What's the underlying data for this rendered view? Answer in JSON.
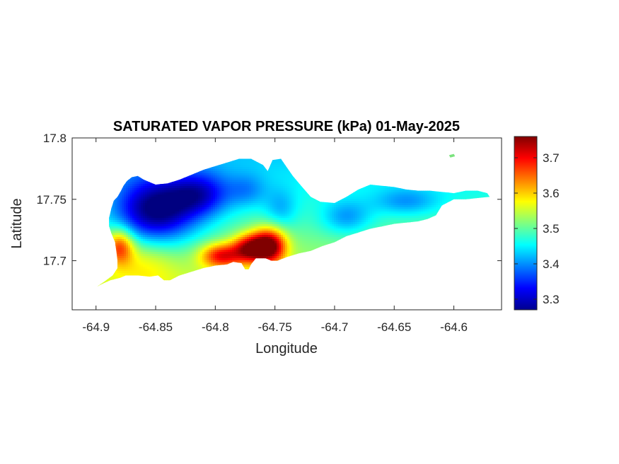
{
  "chart_data": {
    "type": "heatmap",
    "title": "SATURATED VAPOR PRESSURE (kPa) 01-May-2025",
    "xlabel": "Longitude",
    "ylabel": "Latitude",
    "xlim": [
      -64.92,
      -64.56
    ],
    "ylim": [
      17.66,
      17.8
    ],
    "xticks": [
      -64.9,
      -64.85,
      -64.8,
      -64.75,
      -64.7,
      -64.65,
      -64.6
    ],
    "xtick_labels": [
      "-64.9",
      "-64.85",
      "-64.8",
      "-64.75",
      "-64.7",
      "-64.65",
      "-64.6"
    ],
    "yticks": [
      17.7,
      17.75,
      17.8
    ],
    "ytick_labels": [
      "17.7",
      "17.75",
      "17.8"
    ],
    "colormap": "jet",
    "colorbar": {
      "range": [
        3.27,
        3.76
      ],
      "ticks": [
        3.3,
        3.4,
        3.5,
        3.6,
        3.7
      ],
      "tick_labels": [
        "3.3",
        "3.4",
        "3.5",
        "3.6",
        "3.7"
      ],
      "placement": "right"
    },
    "region_outline": [
      [
        -64.899,
        17.679
      ],
      [
        -64.893,
        17.683
      ],
      [
        -64.886,
        17.688
      ],
      [
        -64.882,
        17.694
      ],
      [
        -64.882,
        17.7
      ],
      [
        -64.883,
        17.708
      ],
      [
        -64.884,
        17.715
      ],
      [
        -64.887,
        17.722
      ],
      [
        -64.889,
        17.728
      ],
      [
        -64.889,
        17.735
      ],
      [
        -64.887,
        17.743
      ],
      [
        -64.885,
        17.749
      ],
      [
        -64.882,
        17.752
      ],
      [
        -64.879,
        17.757
      ],
      [
        -64.877,
        17.761
      ],
      [
        -64.874,
        17.765
      ],
      [
        -64.87,
        17.768
      ],
      [
        -64.865,
        17.769
      ],
      [
        -64.86,
        17.766
      ],
      [
        -64.85,
        17.762
      ],
      [
        -64.84,
        17.763
      ],
      [
        -64.83,
        17.766
      ],
      [
        -64.82,
        17.77
      ],
      [
        -64.81,
        17.774
      ],
      [
        -64.8,
        17.777
      ],
      [
        -64.79,
        17.78
      ],
      [
        -64.78,
        17.783
      ],
      [
        -64.77,
        17.783
      ],
      [
        -64.76,
        17.778
      ],
      [
        -64.756,
        17.773
      ],
      [
        -64.752,
        17.782
      ],
      [
        -64.745,
        17.783
      ],
      [
        -64.74,
        17.776
      ],
      [
        -64.735,
        17.769
      ],
      [
        -64.728,
        17.761
      ],
      [
        -64.72,
        17.752
      ],
      [
        -64.712,
        17.748
      ],
      [
        -64.7,
        17.747
      ],
      [
        -64.69,
        17.752
      ],
      [
        -64.68,
        17.758
      ],
      [
        -64.67,
        17.762
      ],
      [
        -64.66,
        17.761
      ],
      [
        -64.65,
        17.76
      ],
      [
        -64.64,
        17.758
      ],
      [
        -64.63,
        17.757
      ],
      [
        -64.62,
        17.757
      ],
      [
        -64.61,
        17.756
      ],
      [
        -64.6,
        17.755
      ],
      [
        -64.59,
        17.757
      ],
      [
        -64.58,
        17.757
      ],
      [
        -64.572,
        17.755
      ],
      [
        -64.57,
        17.752
      ],
      [
        -64.58,
        17.751
      ],
      [
        -64.59,
        17.75
      ],
      [
        -64.6,
        17.75
      ],
      [
        -64.61,
        17.745
      ],
      [
        -64.615,
        17.737
      ],
      [
        -64.622,
        17.734
      ],
      [
        -64.63,
        17.732
      ],
      [
        -64.64,
        17.731
      ],
      [
        -64.65,
        17.73
      ],
      [
        -64.66,
        17.728
      ],
      [
        -64.67,
        17.726
      ],
      [
        -64.68,
        17.723
      ],
      [
        -64.69,
        17.72
      ],
      [
        -64.7,
        17.715
      ],
      [
        -64.71,
        17.712
      ],
      [
        -64.72,
        17.708
      ],
      [
        -64.73,
        17.706
      ],
      [
        -64.74,
        17.703
      ],
      [
        -64.748,
        17.7
      ],
      [
        -64.753,
        17.7
      ],
      [
        -64.758,
        17.702
      ],
      [
        -64.762,
        17.702
      ],
      [
        -64.766,
        17.702
      ],
      [
        -64.77,
        17.697
      ],
      [
        -64.772,
        17.693
      ],
      [
        -64.775,
        17.693
      ],
      [
        -64.778,
        17.698
      ],
      [
        -64.785,
        17.699
      ],
      [
        -64.79,
        17.697
      ],
      [
        -64.8,
        17.696
      ],
      [
        -64.81,
        17.694
      ],
      [
        -64.82,
        17.691
      ],
      [
        -64.83,
        17.688
      ],
      [
        -64.838,
        17.684
      ],
      [
        -64.843,
        17.684
      ],
      [
        -64.848,
        17.688
      ],
      [
        -64.855,
        17.687
      ],
      [
        -64.865,
        17.688
      ],
      [
        -64.875,
        17.688
      ],
      [
        -64.88,
        17.686
      ],
      [
        -64.888,
        17.684
      ],
      [
        -64.895,
        17.681
      ]
    ],
    "islets": [
      [
        [
          -64.604,
          17.786
        ],
        [
          -64.6,
          17.787
        ],
        [
          -64.599,
          17.785
        ],
        [
          -64.603,
          17.784
        ]
      ]
    ],
    "field_features": [
      {
        "kind": "low",
        "lon": -64.85,
        "lat": 17.74,
        "sx": 0.025,
        "sy": 0.02,
        "amp": -0.22
      },
      {
        "kind": "low",
        "lon": -64.812,
        "lat": 17.754,
        "sx": 0.018,
        "sy": 0.013,
        "amp": -0.13
      },
      {
        "kind": "low",
        "lon": -64.773,
        "lat": 17.757,
        "sx": 0.012,
        "sy": 0.01,
        "amp": -0.06
      },
      {
        "kind": "low",
        "lon": -64.745,
        "lat": 17.742,
        "sx": 0.01,
        "sy": 0.012,
        "amp": -0.06
      },
      {
        "kind": "low",
        "lon": -64.69,
        "lat": 17.735,
        "sx": 0.015,
        "sy": 0.01,
        "amp": -0.08
      },
      {
        "kind": "low",
        "lon": -64.64,
        "lat": 17.748,
        "sx": 0.02,
        "sy": 0.008,
        "amp": -0.07
      },
      {
        "kind": "high",
        "lon": -64.755,
        "lat": 17.712,
        "sx": 0.01,
        "sy": 0.01,
        "amp": 0.27
      },
      {
        "kind": "high",
        "lon": -64.772,
        "lat": 17.71,
        "sx": 0.01,
        "sy": 0.008,
        "amp": 0.2
      },
      {
        "kind": "high",
        "lon": -64.795,
        "lat": 17.704,
        "sx": 0.012,
        "sy": 0.007,
        "amp": 0.18
      },
      {
        "kind": "high",
        "lon": -64.88,
        "lat": 17.712,
        "sx": 0.008,
        "sy": 0.01,
        "amp": 0.16
      },
      {
        "kind": "high",
        "lon": -64.86,
        "lat": 17.7,
        "sx": 0.02,
        "sy": 0.015,
        "amp": 0.06
      }
    ]
  }
}
